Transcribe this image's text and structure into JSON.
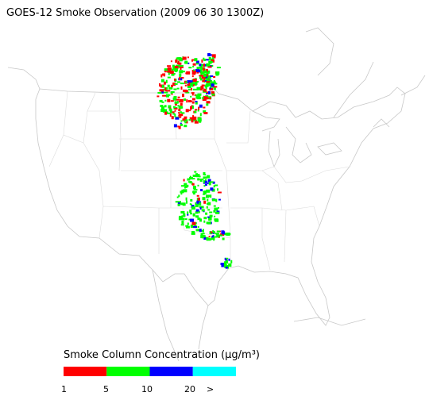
{
  "title": "GOES-12 Smoke Observation (2009 06 30  1300Z)",
  "legend": {
    "title": "Smoke Column Concentration (μg/m³)",
    "colors": [
      "#ff0000",
      "#00ff00",
      "#0000ff",
      "#00ffff"
    ],
    "ticks": [
      "1",
      "5",
      "10",
      "20",
      ">"
    ]
  }
}
